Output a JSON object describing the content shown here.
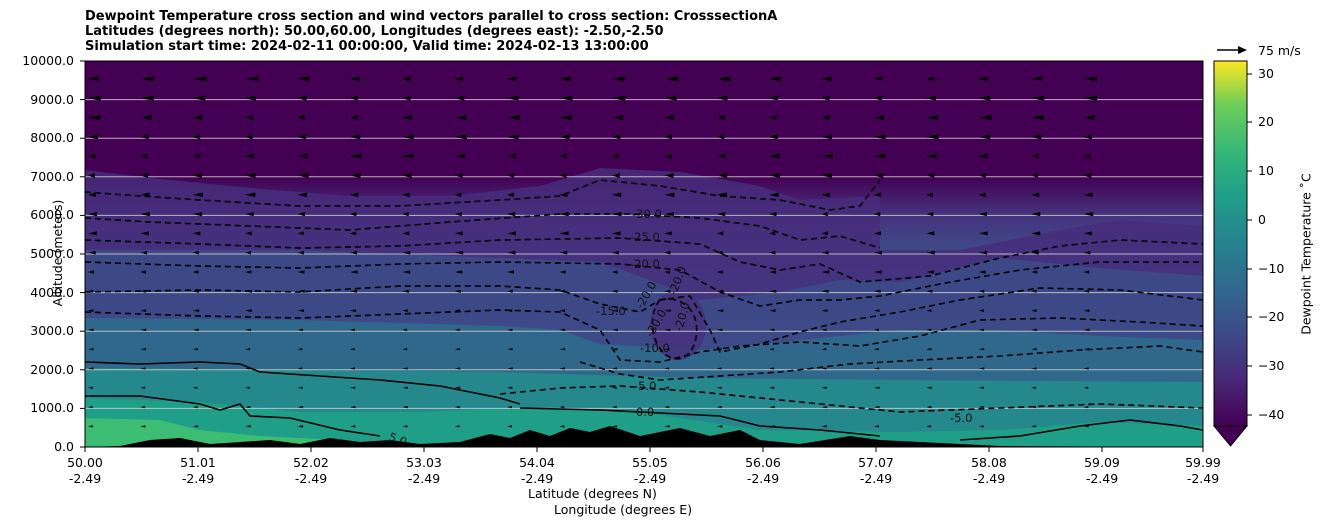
{
  "chart_data": {
    "type": "heatmap",
    "title_lines": [
      "Dewpoint Temperature cross section and wind vectors parallel to cross section: CrosssectionA",
      "Latitudes (degrees north): 50.00,60.00, Longitudes (degrees east): -2.50,-2.50",
      "Simulation start time: 2024-02-11 00:00:00, Valid time: 2024-02-13 13:00:00"
    ],
    "ylabel": "Altitude (meters)",
    "xlabel_lat": "Latitude (degrees N)",
    "xlabel_lon": "Longitude (degrees E)",
    "ylim": [
      0,
      10000
    ],
    "y_ticks": [
      "0.0",
      "1000.0",
      "2000.0",
      "3000.0",
      "4000.0",
      "5000.0",
      "6000.0",
      "7000.0",
      "8000.0",
      "9000.0",
      "10000.0"
    ],
    "x_ticks_lat": [
      "50.00",
      "51.01",
      "52.02",
      "53.03",
      "54.04",
      "55.05",
      "56.06",
      "57.07",
      "58.08",
      "59.09",
      "59.99"
    ],
    "x_ticks_lon": [
      "-2.49",
      "-2.49",
      "-2.49",
      "-2.49",
      "-2.49",
      "-2.49",
      "-2.49",
      "-2.49",
      "-2.49",
      "-2.49",
      "-2.49"
    ],
    "grid": "horizontal",
    "colorbar": {
      "label": "Dewpoint Temperature ˚C",
      "ticks": [
        "30",
        "20",
        "10",
        "0",
        "−10",
        "−20",
        "−30",
        "−40"
      ],
      "range": [
        -43,
        32
      ],
      "colormap": "viridis"
    },
    "contour_labels": [
      "-30.0",
      "-25.0",
      "-20.0",
      "-15.0",
      "-20.0",
      "-20.0",
      "-30.0",
      "-20.0",
      "-10.0",
      "-5.0",
      "0.0",
      "-5.0",
      "5.0"
    ],
    "reference_vector": "75 m/s",
    "colors": {
      "dark_top": "#440154",
      "upper_purple": "#46337e",
      "mid_blue": "#365c8d",
      "mid_teal": "#277f8e",
      "low_teal": "#1fa187",
      "surface_green": "#3dbc74",
      "terrain": "#000000"
    }
  }
}
